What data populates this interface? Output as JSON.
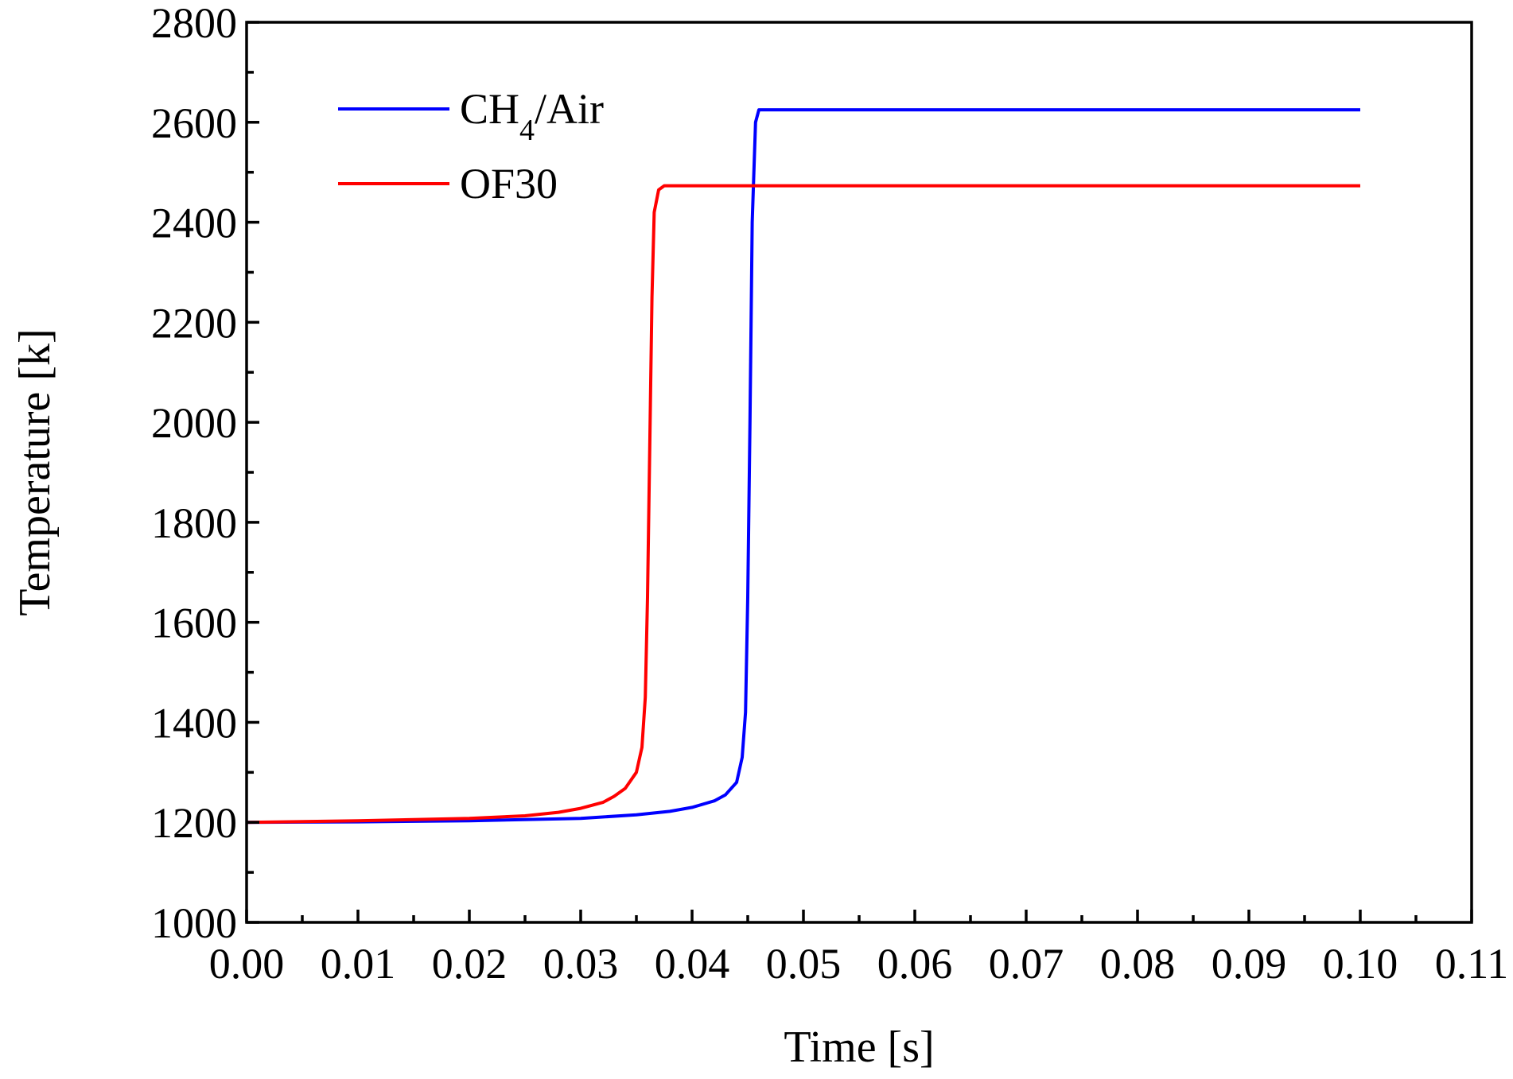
{
  "chart_data": {
    "type": "line",
    "xlabel": "Time [s]",
    "ylabel": "Temperature [k]",
    "xlim": [
      0.0,
      0.11
    ],
    "ylim": [
      1000,
      2800
    ],
    "x_ticks": [
      "0.00",
      "0.01",
      "0.02",
      "0.03",
      "0.04",
      "0.05",
      "0.06",
      "0.07",
      "0.08",
      "0.09",
      "0.10",
      "0.11"
    ],
    "y_ticks": [
      "1000",
      "1200",
      "1400",
      "1600",
      "1800",
      "2000",
      "2200",
      "2400",
      "2600",
      "2800"
    ],
    "grid": false,
    "legend_position": "top-left",
    "series": [
      {
        "name_main": "CH",
        "name_sub": "4",
        "name_tail": "/Air",
        "color": "#0000ff",
        "x": [
          0.0,
          0.01,
          0.02,
          0.03,
          0.035,
          0.038,
          0.04,
          0.042,
          0.043,
          0.044,
          0.0445,
          0.0448,
          0.045,
          0.0452,
          0.0454,
          0.0457,
          0.046,
          0.05,
          0.06,
          0.07,
          0.08,
          0.09,
          0.1
        ],
        "y": [
          1200,
          1201,
          1203,
          1208,
          1215,
          1222,
          1230,
          1243,
          1255,
          1280,
          1330,
          1420,
          1650,
          2000,
          2400,
          2600,
          2625,
          2625,
          2625,
          2625,
          2625,
          2625,
          2625
        ]
      },
      {
        "name_main": "OF30",
        "name_sub": "",
        "name_tail": "",
        "color": "#ff0000",
        "x": [
          0.0,
          0.01,
          0.02,
          0.025,
          0.028,
          0.03,
          0.032,
          0.033,
          0.034,
          0.035,
          0.0355,
          0.0358,
          0.036,
          0.0362,
          0.0364,
          0.0366,
          0.037,
          0.0375,
          0.04,
          0.05,
          0.06,
          0.07,
          0.08,
          0.09,
          0.1
        ],
        "y": [
          1200,
          1203,
          1208,
          1213,
          1220,
          1228,
          1240,
          1252,
          1268,
          1300,
          1350,
          1450,
          1650,
          1950,
          2250,
          2420,
          2465,
          2473,
          2473,
          2473,
          2473,
          2473,
          2473,
          2473,
          2473
        ]
      }
    ]
  }
}
